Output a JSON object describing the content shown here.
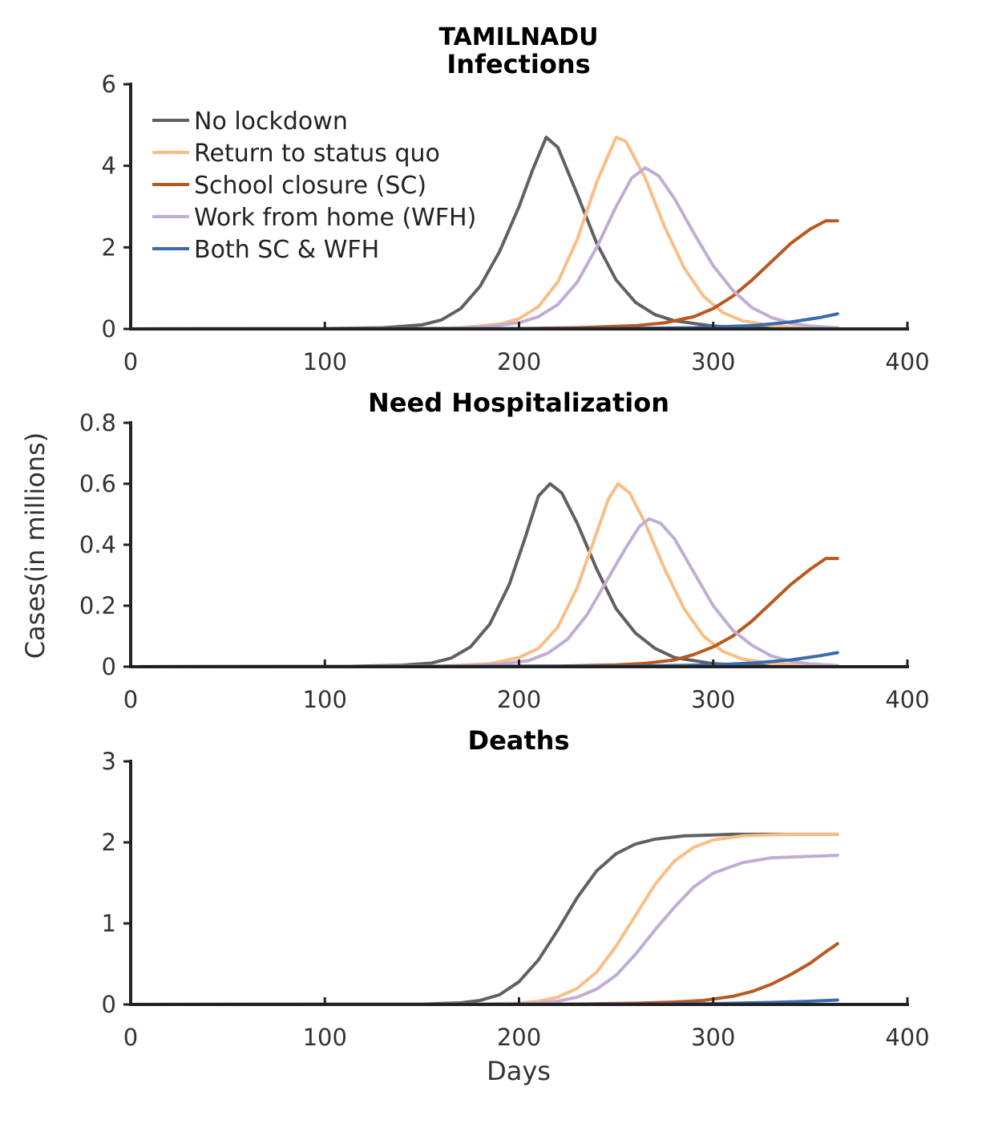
{
  "figure": {
    "suptitle": "TAMILNADU",
    "ylabel": "Cases(in millions)",
    "xlabel": "Days"
  },
  "legend": {
    "placement": "top-left",
    "entries": [
      {
        "label": "No lockdown",
        "color": "#606060"
      },
      {
        "label": "Return to status quo",
        "color": "#F9BE86"
      },
      {
        "label": "School closure (SC)",
        "color": "#B9581F"
      },
      {
        "label": "Work from home (WFH)",
        "color": "#BFADD4"
      },
      {
        "label": "Both SC & WFH",
        "color": "#3A6BAE"
      }
    ]
  },
  "chart_data": [
    {
      "type": "line",
      "title": "Infections",
      "xlim": [
        0,
        400
      ],
      "ylim": [
        0,
        6
      ],
      "xticks": [
        "0",
        "100",
        "200",
        "300",
        "400"
      ],
      "yticks": [
        "0",
        "2",
        "4",
        "6"
      ],
      "series": [
        {
          "name": "No lockdown",
          "color": "#606060",
          "points": [
            [
              0,
              0
            ],
            [
              100,
              0.01
            ],
            [
              130,
              0.03
            ],
            [
              150,
              0.1
            ],
            [
              160,
              0.22
            ],
            [
              170,
              0.5
            ],
            [
              180,
              1.05
            ],
            [
              190,
              1.9
            ],
            [
              200,
              3.0
            ],
            [
              207,
              3.9
            ],
            [
              214,
              4.7
            ],
            [
              220,
              4.45
            ],
            [
              230,
              3.3
            ],
            [
              240,
              2.1
            ],
            [
              250,
              1.2
            ],
            [
              260,
              0.65
            ],
            [
              270,
              0.35
            ],
            [
              280,
              0.2
            ],
            [
              300,
              0.07
            ],
            [
              320,
              0.03
            ],
            [
              340,
              0.01
            ],
            [
              364,
              0.01
            ]
          ]
        },
        {
          "name": "Return to status quo",
          "color": "#F9BE86",
          "points": [
            [
              0,
              0
            ],
            [
              150,
              0.01
            ],
            [
              170,
              0.03
            ],
            [
              190,
              0.12
            ],
            [
              200,
              0.25
            ],
            [
              210,
              0.55
            ],
            [
              220,
              1.15
            ],
            [
              230,
              2.2
            ],
            [
              240,
              3.6
            ],
            [
              250,
              4.7
            ],
            [
              255,
              4.6
            ],
            [
              265,
              3.7
            ],
            [
              275,
              2.5
            ],
            [
              285,
              1.5
            ],
            [
              295,
              0.8
            ],
            [
              305,
              0.4
            ],
            [
              315,
              0.2
            ],
            [
              330,
              0.08
            ],
            [
              345,
              0.03
            ],
            [
              364,
              0.01
            ]
          ]
        },
        {
          "name": "School closure (SC)",
          "color": "#B9581F",
          "points": [
            [
              0,
              0
            ],
            [
              200,
              0.01
            ],
            [
              230,
              0.03
            ],
            [
              260,
              0.08
            ],
            [
              275,
              0.15
            ],
            [
              290,
              0.3
            ],
            [
              300,
              0.5
            ],
            [
              310,
              0.8
            ],
            [
              320,
              1.2
            ],
            [
              330,
              1.65
            ],
            [
              340,
              2.1
            ],
            [
              350,
              2.45
            ],
            [
              358,
              2.65
            ],
            [
              364,
              2.65
            ]
          ]
        },
        {
          "name": "Work from home (WFH)",
          "color": "#BFADD4",
          "points": [
            [
              0,
              0
            ],
            [
              160,
              0.01
            ],
            [
              180,
              0.04
            ],
            [
              200,
              0.15
            ],
            [
              210,
              0.3
            ],
            [
              220,
              0.6
            ],
            [
              230,
              1.15
            ],
            [
              240,
              2.0
            ],
            [
              250,
              3.0
            ],
            [
              258,
              3.7
            ],
            [
              265,
              3.95
            ],
            [
              272,
              3.75
            ],
            [
              280,
              3.2
            ],
            [
              290,
              2.35
            ],
            [
              300,
              1.55
            ],
            [
              310,
              0.95
            ],
            [
              320,
              0.52
            ],
            [
              330,
              0.28
            ],
            [
              340,
              0.14
            ],
            [
              350,
              0.07
            ],
            [
              364,
              0.03
            ]
          ]
        },
        {
          "name": "Both SC & WFH",
          "color": "#3A6BAE",
          "points": [
            [
              0,
              0
            ],
            [
              250,
              0.01
            ],
            [
              290,
              0.03
            ],
            [
              320,
              0.08
            ],
            [
              340,
              0.17
            ],
            [
              355,
              0.28
            ],
            [
              364,
              0.37
            ]
          ]
        }
      ]
    },
    {
      "type": "line",
      "title": "Need Hospitalization",
      "xlim": [
        0,
        400
      ],
      "ylim": [
        0,
        0.8
      ],
      "xticks": [
        "0",
        "100",
        "200",
        "300",
        "400"
      ],
      "yticks": [
        "0",
        "0.2",
        "0.4",
        "0.6",
        "0.8"
      ],
      "series": [
        {
          "name": "No lockdown",
          "color": "#606060",
          "points": [
            [
              0,
              0
            ],
            [
              110,
              0.001
            ],
            [
              140,
              0.005
            ],
            [
              155,
              0.012
            ],
            [
              165,
              0.028
            ],
            [
              175,
              0.065
            ],
            [
              185,
              0.14
            ],
            [
              195,
              0.27
            ],
            [
              203,
              0.42
            ],
            [
              210,
              0.56
            ],
            [
              216,
              0.6
            ],
            [
              222,
              0.57
            ],
            [
              230,
              0.47
            ],
            [
              240,
              0.32
            ],
            [
              250,
              0.19
            ],
            [
              260,
              0.11
            ],
            [
              270,
              0.06
            ],
            [
              280,
              0.03
            ],
            [
              300,
              0.01
            ],
            [
              320,
              0.004
            ],
            [
              364,
              0.001
            ]
          ]
        },
        {
          "name": "Return to status quo",
          "color": "#F9BE86",
          "points": [
            [
              0,
              0
            ],
            [
              160,
              0.002
            ],
            [
              185,
              0.01
            ],
            [
              200,
              0.03
            ],
            [
              210,
              0.06
            ],
            [
              220,
              0.13
            ],
            [
              230,
              0.26
            ],
            [
              240,
              0.44
            ],
            [
              246,
              0.55
            ],
            [
              251,
              0.6
            ],
            [
              257,
              0.57
            ],
            [
              265,
              0.47
            ],
            [
              275,
              0.32
            ],
            [
              285,
              0.19
            ],
            [
              295,
              0.1
            ],
            [
              305,
              0.05
            ],
            [
              315,
              0.025
            ],
            [
              330,
              0.01
            ],
            [
              364,
              0.002
            ]
          ]
        },
        {
          "name": "School closure (SC)",
          "color": "#B9581F",
          "points": [
            [
              0,
              0
            ],
            [
              220,
              0.002
            ],
            [
              250,
              0.006
            ],
            [
              265,
              0.011
            ],
            [
              280,
              0.022
            ],
            [
              290,
              0.04
            ],
            [
              300,
              0.065
            ],
            [
              310,
              0.1
            ],
            [
              320,
              0.15
            ],
            [
              330,
              0.21
            ],
            [
              340,
              0.27
            ],
            [
              350,
              0.32
            ],
            [
              358,
              0.355
            ],
            [
              364,
              0.355
            ]
          ]
        },
        {
          "name": "Work from home (WFH)",
          "color": "#BFADD4",
          "points": [
            [
              0,
              0
            ],
            [
              170,
              0.002
            ],
            [
              190,
              0.008
            ],
            [
              205,
              0.02
            ],
            [
              215,
              0.045
            ],
            [
              225,
              0.09
            ],
            [
              235,
              0.17
            ],
            [
              245,
              0.28
            ],
            [
              255,
              0.39
            ],
            [
              262,
              0.46
            ],
            [
              267,
              0.485
            ],
            [
              273,
              0.47
            ],
            [
              280,
              0.42
            ],
            [
              290,
              0.31
            ],
            [
              300,
              0.2
            ],
            [
              310,
              0.12
            ],
            [
              320,
              0.07
            ],
            [
              330,
              0.035
            ],
            [
              340,
              0.018
            ],
            [
              350,
              0.009
            ],
            [
              364,
              0.004
            ]
          ]
        },
        {
          "name": "Both SC & WFH",
          "color": "#3A6BAE",
          "points": [
            [
              0,
              0
            ],
            [
              260,
              0.002
            ],
            [
              300,
              0.006
            ],
            [
              320,
              0.012
            ],
            [
              340,
              0.022
            ],
            [
              355,
              0.036
            ],
            [
              364,
              0.046
            ]
          ]
        }
      ]
    },
    {
      "type": "line",
      "title": "Deaths",
      "xlim": [
        0,
        400
      ],
      "ylim": [
        0,
        3
      ],
      "xticks": [
        "0",
        "100",
        "200",
        "300",
        "400"
      ],
      "yticks": [
        "0",
        "1",
        "2",
        "3"
      ],
      "series": [
        {
          "name": "No lockdown",
          "color": "#606060",
          "points": [
            [
              0,
              0
            ],
            [
              150,
              0.005
            ],
            [
              170,
              0.02
            ],
            [
              180,
              0.05
            ],
            [
              190,
              0.12
            ],
            [
              200,
              0.28
            ],
            [
              210,
              0.55
            ],
            [
              220,
              0.92
            ],
            [
              230,
              1.32
            ],
            [
              240,
              1.65
            ],
            [
              250,
              1.86
            ],
            [
              260,
              1.98
            ],
            [
              270,
              2.04
            ],
            [
              285,
              2.08
            ],
            [
              310,
              2.1
            ],
            [
              364,
              2.1
            ]
          ]
        },
        {
          "name": "Return to status quo",
          "color": "#F9BE86",
          "points": [
            [
              0,
              0
            ],
            [
              180,
              0.003
            ],
            [
              200,
              0.015
            ],
            [
              210,
              0.04
            ],
            [
              220,
              0.09
            ],
            [
              230,
              0.2
            ],
            [
              240,
              0.4
            ],
            [
              250,
              0.72
            ],
            [
              260,
              1.1
            ],
            [
              270,
              1.48
            ],
            [
              280,
              1.77
            ],
            [
              290,
              1.94
            ],
            [
              300,
              2.03
            ],
            [
              315,
              2.08
            ],
            [
              340,
              2.1
            ],
            [
              364,
              2.1
            ]
          ]
        },
        {
          "name": "School closure (SC)",
          "color": "#B9581F",
          "points": [
            [
              0,
              0
            ],
            [
              230,
              0.005
            ],
            [
              260,
              0.015
            ],
            [
              280,
              0.03
            ],
            [
              295,
              0.05
            ],
            [
              310,
              0.1
            ],
            [
              320,
              0.16
            ],
            [
              330,
              0.25
            ],
            [
              340,
              0.37
            ],
            [
              350,
              0.51
            ],
            [
              358,
              0.65
            ],
            [
              364,
              0.75
            ]
          ]
        },
        {
          "name": "Work from home (WFH)",
          "color": "#BFADD4",
          "points": [
            [
              0,
              0
            ],
            [
              190,
              0.003
            ],
            [
              210,
              0.015
            ],
            [
              220,
              0.04
            ],
            [
              230,
              0.09
            ],
            [
              240,
              0.19
            ],
            [
              250,
              0.36
            ],
            [
              260,
              0.62
            ],
            [
              270,
              0.92
            ],
            [
              280,
              1.2
            ],
            [
              290,
              1.45
            ],
            [
              300,
              1.62
            ],
            [
              315,
              1.75
            ],
            [
              330,
              1.81
            ],
            [
              364,
              1.84
            ]
          ]
        },
        {
          "name": "Both SC & WFH",
          "color": "#3A6BAE",
          "points": [
            [
              0,
              0
            ],
            [
              260,
              0.003
            ],
            [
              300,
              0.01
            ],
            [
              330,
              0.025
            ],
            [
              350,
              0.04
            ],
            [
              364,
              0.055
            ]
          ]
        }
      ]
    }
  ]
}
